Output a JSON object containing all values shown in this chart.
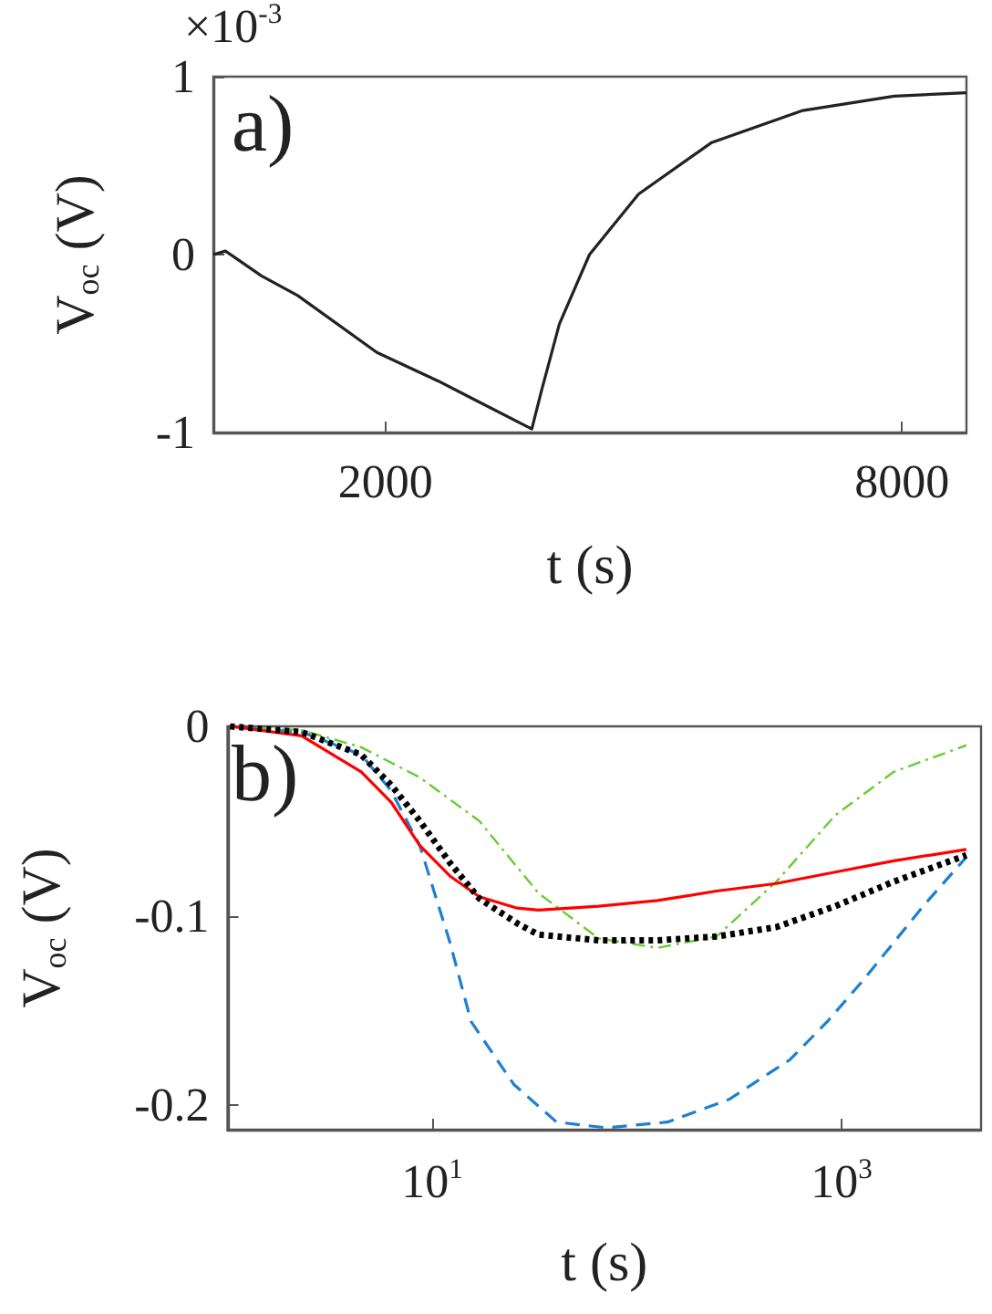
{
  "chart_data": [
    {
      "type": "line",
      "ylabel": "V$_{oc}$ (V)",
      "xlabel": "t (s)",
      "annotations": [
        "a)",
        "×10$^{-3}$"
      ],
      "xlim": [
        0,
        8750
      ],
      "xticks": [
        2000,
        8000
      ],
      "ylim": [
        -1,
        1
      ],
      "yticks": [
        -1,
        0,
        1
      ],
      "grid": false,
      "marker": "none",
      "series": [
        {
          "color": "#222222",
          "line_style": "solid",
          "x": [
            0,
            140,
            560,
            980,
            1900,
            2610,
            3700,
            3810,
            4020,
            4370,
            4940,
            5790,
            6850,
            7910,
            8750
          ],
          "values": [
            0.0,
            0.02,
            -0.12,
            -0.23,
            -0.55,
            -0.71,
            -0.98,
            -0.77,
            -0.39,
            0.0,
            0.34,
            0.63,
            0.81,
            0.89,
            0.91
          ]
        }
      ]
    },
    {
      "type": "line",
      "ylabel": "V$_{oc}$ (V)",
      "xlabel": "t (s)",
      "annotations": [
        "b)"
      ],
      "log": "x",
      "xlim": [
        1,
        4800
      ],
      "xticks": [
        {
          "value": 10,
          "label": "10$^{1}$"
        },
        {
          "value": 1000,
          "label": "10$^{3}$"
        }
      ],
      "ylim": [
        -0.213,
        0
      ],
      "yticks": [
        -0.2,
        -0.1,
        0
      ],
      "grid": false,
      "marker": "none",
      "series": [
        {
          "color": "#1f7fd0",
          "line_style": "dashed",
          "x": [
            1.03,
            2.3,
            4.5,
            6.3,
            8.7,
            12.2,
            15.5,
            25,
            40.5,
            71,
            141,
            282,
            560,
            850,
            1300,
            2500,
            4070
          ],
          "values": [
            0,
            -0.003,
            -0.015,
            -0.034,
            -0.063,
            -0.114,
            -0.156,
            -0.189,
            -0.209,
            -0.212,
            -0.209,
            -0.197,
            -0.176,
            -0.156,
            -0.133,
            -0.095,
            -0.069
          ]
        },
        {
          "color": "#66cc33",
          "line_style": "dashdot",
          "x": [
            1.03,
            2.3,
            4.5,
            8.7,
            17,
            33,
            65,
            126,
            245,
            480,
            930,
            1800,
            4070
          ],
          "values": [
            0,
            -0.002,
            -0.011,
            -0.027,
            -0.05,
            -0.088,
            -0.112,
            -0.117,
            -0.111,
            -0.082,
            -0.047,
            -0.024,
            -0.01
          ]
        },
        {
          "color": "#ff0000",
          "line_style": "solid",
          "x": [
            1.03,
            2.3,
            4.5,
            6.3,
            8.7,
            12.2,
            17,
            26,
            33,
            65,
            126,
            245,
            480,
            930,
            1800,
            4070
          ],
          "values": [
            0,
            -0.005,
            -0.024,
            -0.04,
            -0.063,
            -0.079,
            -0.09,
            -0.096,
            -0.097,
            -0.095,
            -0.092,
            -0.087,
            -0.083,
            -0.077,
            -0.071,
            -0.065
          ]
        },
        {
          "color": "#000000",
          "line_style": "dotted",
          "x": [
            1.03,
            2.3,
            4.5,
            6.3,
            8.7,
            12.2,
            17,
            26,
            33,
            65,
            126,
            245,
            480,
            930,
            1800,
            4070
          ],
          "values": [
            0,
            -0.003,
            -0.015,
            -0.031,
            -0.05,
            -0.072,
            -0.091,
            -0.104,
            -0.11,
            -0.113,
            -0.113,
            -0.111,
            -0.106,
            -0.095,
            -0.082,
            -0.068
          ]
        }
      ]
    }
  ]
}
